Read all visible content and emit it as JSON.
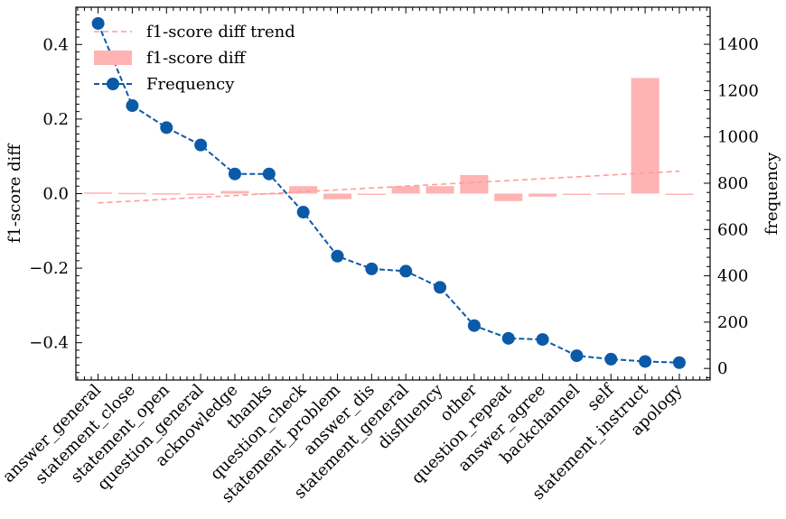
{
  "chart_data": {
    "type": "bar",
    "categories": [
      "answer_general",
      "statement_close",
      "statement_open",
      "question_general",
      "acknowledge",
      "thanks",
      "question_check",
      "statement_problem",
      "answer_dis",
      "statement_general",
      "disfluency",
      "other",
      "question_repeat",
      "answer_agree",
      "backchannel",
      "self",
      "statement_instruct",
      "apology"
    ],
    "series": [
      {
        "name": "f1-score diff",
        "kind": "bar",
        "axis": "left",
        "color": "#ffb3b3",
        "values": [
          0.003,
          0.002,
          0.001,
          -0.003,
          0.007,
          0.001,
          0.02,
          -0.015,
          -0.003,
          0.02,
          0.02,
          0.05,
          -0.02,
          -0.008,
          -0.003,
          0.001,
          0.31,
          -0.003
        ]
      },
      {
        "name": "Frequency",
        "kind": "line",
        "axis": "right",
        "color": "#0b5aa8",
        "marker": "circle",
        "linestyle": "dashed",
        "values": [
          1490,
          1135,
          1040,
          965,
          840,
          840,
          675,
          485,
          430,
          420,
          350,
          185,
          130,
          125,
          55,
          40,
          30,
          25
        ]
      },
      {
        "name": "f1-score diff trend",
        "kind": "trend",
        "axis": "left",
        "color": "#ff9c9c",
        "linestyle": "dashed",
        "start": -0.025,
        "end": 0.06
      }
    ],
    "ylabel": "f1-score diff",
    "y2label": "frequency",
    "ylim": [
      -0.5,
      0.5
    ],
    "y2lim": [
      -50,
      1560
    ],
    "yticks": [
      -0.4,
      -0.2,
      0.0,
      0.2,
      0.4
    ],
    "ytick_labels": [
      "−0.4",
      "−0.2",
      "0.0",
      "0.2",
      "0.4"
    ],
    "y2ticks": [
      0,
      200,
      400,
      600,
      800,
      1000,
      1200,
      1400
    ],
    "y2tick_labels": [
      "0",
      "200",
      "400",
      "600",
      "800",
      "1000",
      "1200",
      "1400"
    ],
    "legend_position": "top-left",
    "grid": false
  }
}
